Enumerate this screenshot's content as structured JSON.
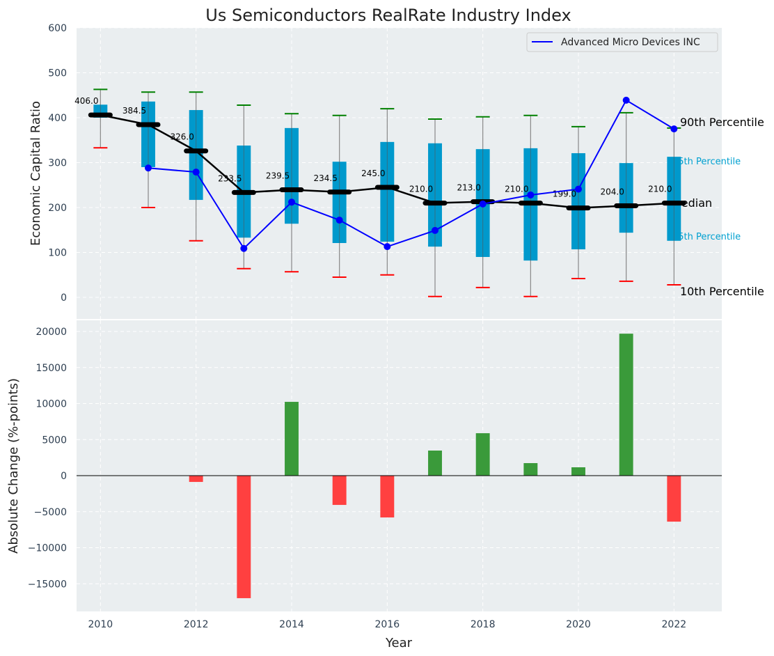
{
  "chart_data": [
    {
      "type": "box",
      "title": "Us Semiconductors RealRate Industry Index",
      "xlabel": "",
      "ylabel": "Economic Capital Ratio",
      "xlim": [
        2009.5,
        2023
      ],
      "ylim": [
        -48,
        600
      ],
      "yticks": [
        0,
        100,
        200,
        300,
        400,
        500,
        600
      ],
      "grid": true,
      "legend": {
        "position": "top-right",
        "entries": [
          "Advanced Micro Devices INC"
        ]
      },
      "years": [
        2010,
        2011,
        2012,
        2013,
        2014,
        2015,
        2016,
        2017,
        2018,
        2019,
        2020,
        2021,
        2022
      ],
      "p10": [
        333,
        200,
        126,
        64,
        57,
        45,
        50,
        2,
        22,
        2,
        42,
        36,
        28
      ],
      "p25": [
        400,
        290,
        217,
        133,
        164,
        121,
        124,
        113,
        90,
        82,
        107,
        144,
        126
      ],
      "median": [
        406.0,
        384.5,
        326.0,
        233.5,
        239.5,
        234.5,
        245.0,
        210.0,
        213.0,
        210.0,
        199.0,
        204.0,
        210.0
      ],
      "median_labels": [
        "406.0",
        "384.5",
        "326.0",
        "233.5",
        "239.5",
        "234.5",
        "245.0",
        "210.0",
        "213.0",
        "210.0",
        "199.0",
        "204.0",
        "210.0"
      ],
      "p75": [
        429,
        436,
        417,
        338,
        377,
        302,
        346,
        343,
        330,
        332,
        321,
        299,
        313
      ],
      "p90": [
        463,
        457,
        457,
        428,
        409,
        405,
        420,
        397,
        402,
        405,
        380,
        411,
        377
      ],
      "series": [
        {
          "name": "Advanced Micro Devices INC",
          "color": "#0000ff",
          "values": [
            null,
            288,
            279,
            109,
            212,
            172,
            113,
            149,
            208,
            228,
            241,
            439,
            375
          ]
        }
      ],
      "annotations": [
        "90th Percentile",
        "75th Percentile",
        "Median",
        "25th Percentile",
        "10th Percentile"
      ]
    },
    {
      "type": "bar",
      "xlabel": "Year",
      "ylabel": "Absolute Change (%-points)",
      "xlim": [
        2009.5,
        2023
      ],
      "ylim": [
        -18840,
        21550
      ],
      "yticks": [
        -15000,
        -10000,
        -5000,
        0,
        5000,
        10000,
        15000,
        20000
      ],
      "ytick_labels": [
        "−15000",
        "−10000",
        "−5000",
        "0",
        "5000",
        "10000",
        "15000",
        "20000"
      ],
      "xticks": [
        2010,
        2012,
        2014,
        2016,
        2018,
        2020,
        2022
      ],
      "categories": [
        2012,
        2013,
        2014,
        2015,
        2016,
        2017,
        2018,
        2019,
        2020,
        2021,
        2022
      ],
      "values": [
        -870,
        -17000,
        10240,
        -4060,
        -5800,
        3480,
        5890,
        1740,
        1160,
        19700,
        -6380
      ],
      "colors": {
        "positive": "#3a9a3a",
        "negative": "#ff4040"
      }
    }
  ],
  "colors": {
    "box": "#0099cc",
    "p90_cap": "#008000",
    "p10_cap": "#ff0000",
    "median": "#000000",
    "background": "#eaeef0"
  }
}
